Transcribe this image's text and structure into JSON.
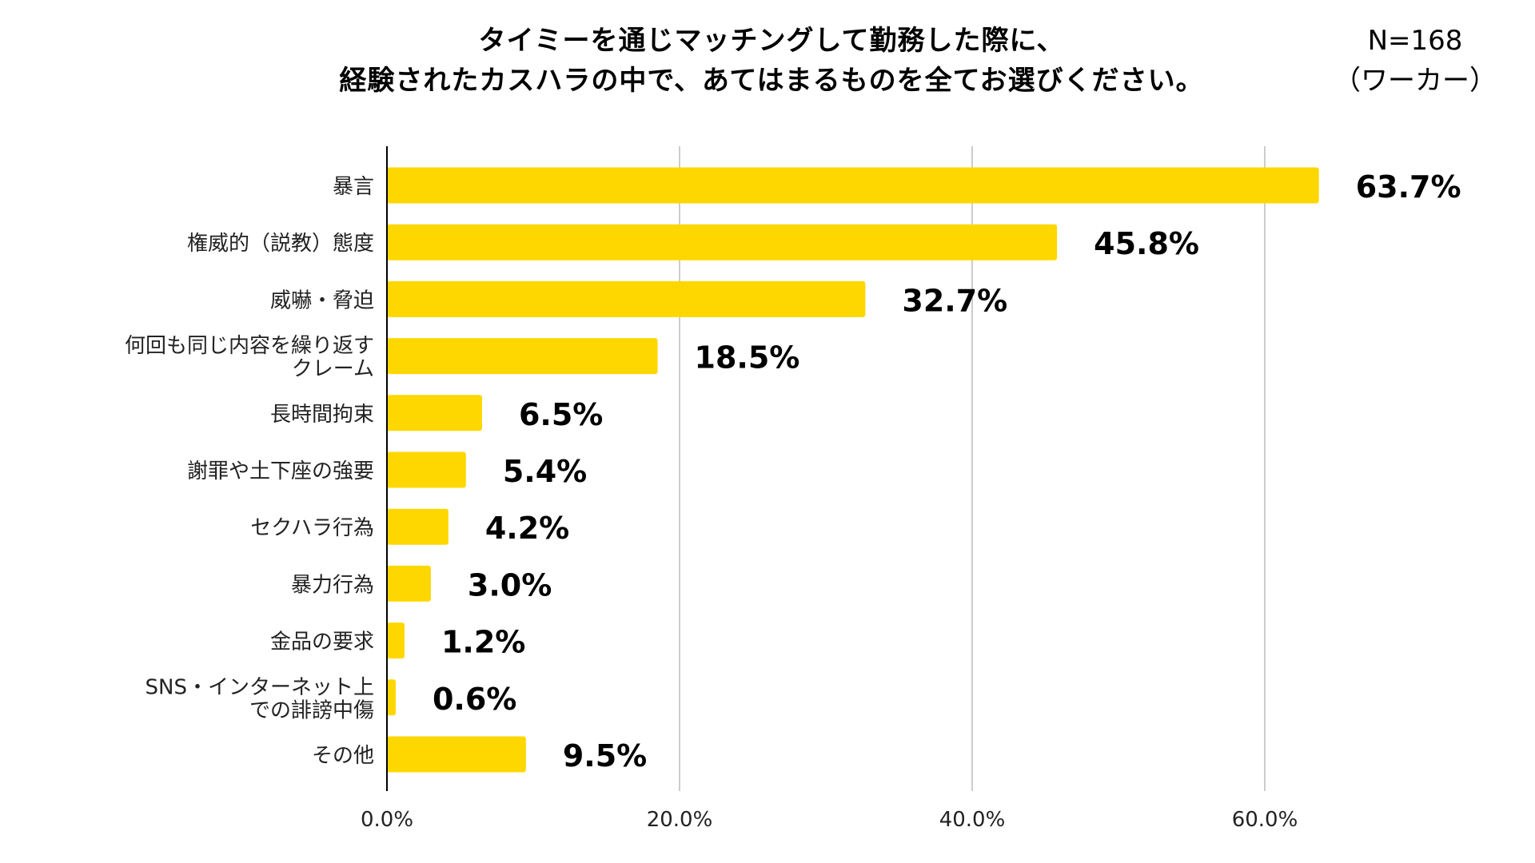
{
  "title_lines": [
    "タイミーを通じマッチングして勤務した際に、",
    "経験されたカスハラの中で、あてはまるものを全てお選びください。"
  ],
  "sample": {
    "n": "N=168",
    "group": "（ワーカー）"
  },
  "chart_data": {
    "type": "bar",
    "orientation": "horizontal",
    "categories": [
      [
        "暴言"
      ],
      [
        "権威的（説教）態度"
      ],
      [
        "威嚇・脅迫"
      ],
      [
        "何回も同じ内容を繰り返す",
        "クレーム"
      ],
      [
        "長時間拘束"
      ],
      [
        "謝罪や土下座の強要"
      ],
      [
        "セクハラ行為"
      ],
      [
        "暴力行為"
      ],
      [
        "金品の要求"
      ],
      [
        "SNS・インターネット上",
        "での誹謗中傷"
      ],
      [
        "その他"
      ]
    ],
    "values": [
      63.7,
      45.8,
      32.7,
      18.5,
      6.5,
      5.4,
      4.2,
      3.0,
      1.2,
      0.6,
      9.5
    ],
    "value_labels": [
      "63.7%",
      "45.8%",
      "32.7%",
      "18.5%",
      "6.5%",
      "5.4%",
      "4.2%",
      "3.0%",
      "1.2%",
      "0.6%",
      "9.5%"
    ],
    "xticks": [
      0,
      20,
      40,
      60
    ],
    "xtick_labels": [
      "0.0%",
      "20.0%",
      "40.0%",
      "60.0%"
    ],
    "xlim": [
      0,
      70
    ],
    "grid": "vertical",
    "bar_color": "#FFD700",
    "grid_color": "#CCCCCC",
    "axis_color": "#000000"
  }
}
